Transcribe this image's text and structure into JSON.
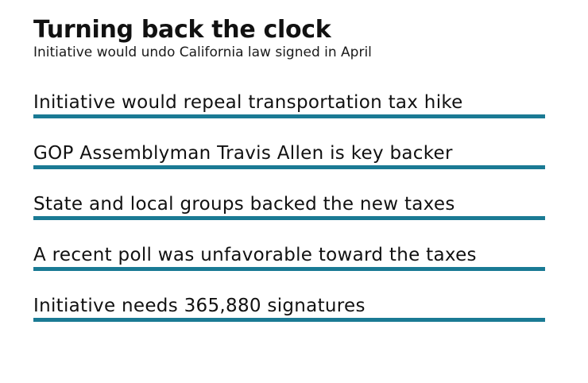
{
  "header": {
    "title": "Turning back the clock",
    "subtitle": "Initiative would undo California law signed in April"
  },
  "items": [
    {
      "text": "Initiative would repeal transportation tax hike"
    },
    {
      "text": "GOP Assemblyman Travis Allen is key backer"
    },
    {
      "text": "State and local groups backed the new taxes"
    },
    {
      "text": "A recent poll was unfavorable toward the taxes"
    },
    {
      "text": "Initiative needs 365,880 signatures"
    }
  ],
  "colors": {
    "rule": "#1a7a94",
    "text": "#111111"
  }
}
